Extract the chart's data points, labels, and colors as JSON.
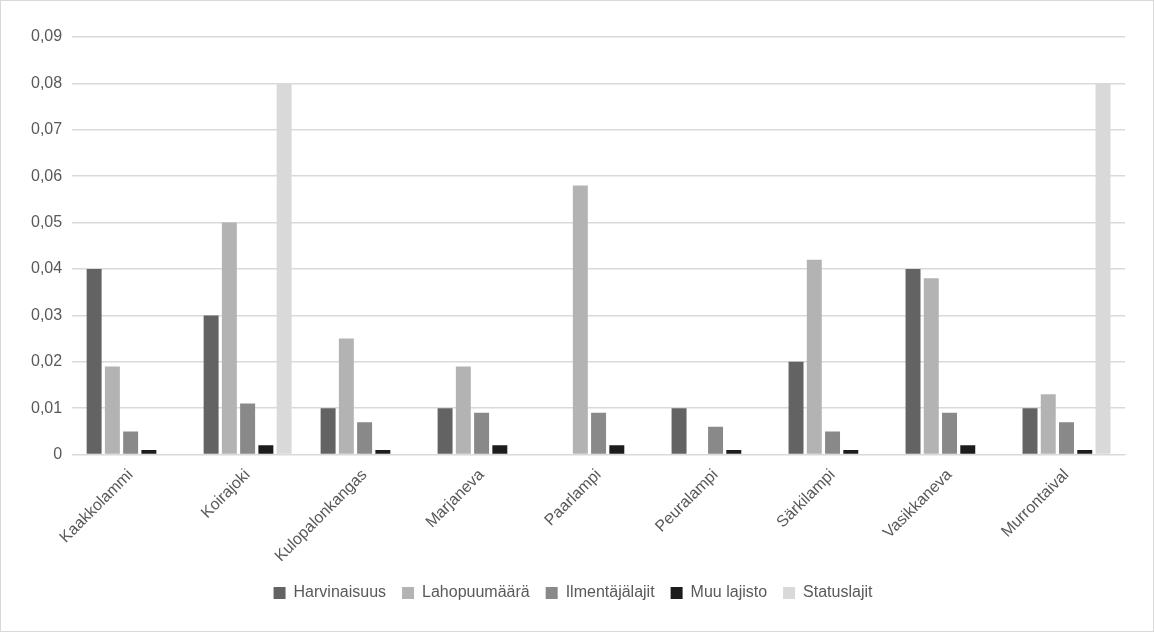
{
  "chart_data": {
    "type": "bar",
    "categories": [
      "Kaakkolammi",
      "Koirajoki",
      "Kulopalonkangas",
      "Marjaneva",
      "Paarlampi",
      "Peuralampi",
      "Särkilampi",
      "Vasikkaneva",
      "Murrontaival"
    ],
    "series": [
      {
        "name": "Harvinaisuus",
        "color": "#636363",
        "values": [
          0.04,
          0.03,
          0.01,
          0.01,
          0,
          0.01,
          0.02,
          0.04,
          0.01
        ]
      },
      {
        "name": "Lahopuumäärä",
        "color": "#b3b3b3",
        "values": [
          0.019,
          0.05,
          0.025,
          0.019,
          0.058,
          0,
          0.042,
          0.038,
          0.013
        ]
      },
      {
        "name": "Ilmentäjälajit",
        "color": "#898989",
        "values": [
          0.005,
          0.011,
          0.007,
          0.009,
          0.009,
          0.006,
          0.005,
          0.009,
          0.007
        ]
      },
      {
        "name": "Muu lajisto",
        "color": "#1c1c1c",
        "values": [
          0.001,
          0.002,
          0.001,
          0.002,
          0.002,
          0.001,
          0.001,
          0.002,
          0.001
        ]
      },
      {
        "name": "Statuslajit",
        "color": "#d9d9d9",
        "values": [
          0,
          0.08,
          0,
          0,
          0,
          0,
          0,
          0,
          0.08
        ]
      }
    ],
    "ylim": [
      0,
      0.09
    ],
    "yticks": [
      {
        "value": 0,
        "label": "0"
      },
      {
        "value": 0.01,
        "label": "0,01"
      },
      {
        "value": 0.02,
        "label": "0,02"
      },
      {
        "value": 0.03,
        "label": "0,03"
      },
      {
        "value": 0.04,
        "label": "0,04"
      },
      {
        "value": 0.05,
        "label": "0,05"
      },
      {
        "value": 0.06,
        "label": "0,06"
      },
      {
        "value": 0.07,
        "label": "0,07"
      },
      {
        "value": 0.08,
        "label": "0,08"
      },
      {
        "value": 0.09,
        "label": "0,09"
      }
    ],
    "grid": "y",
    "legend": "bottom"
  }
}
